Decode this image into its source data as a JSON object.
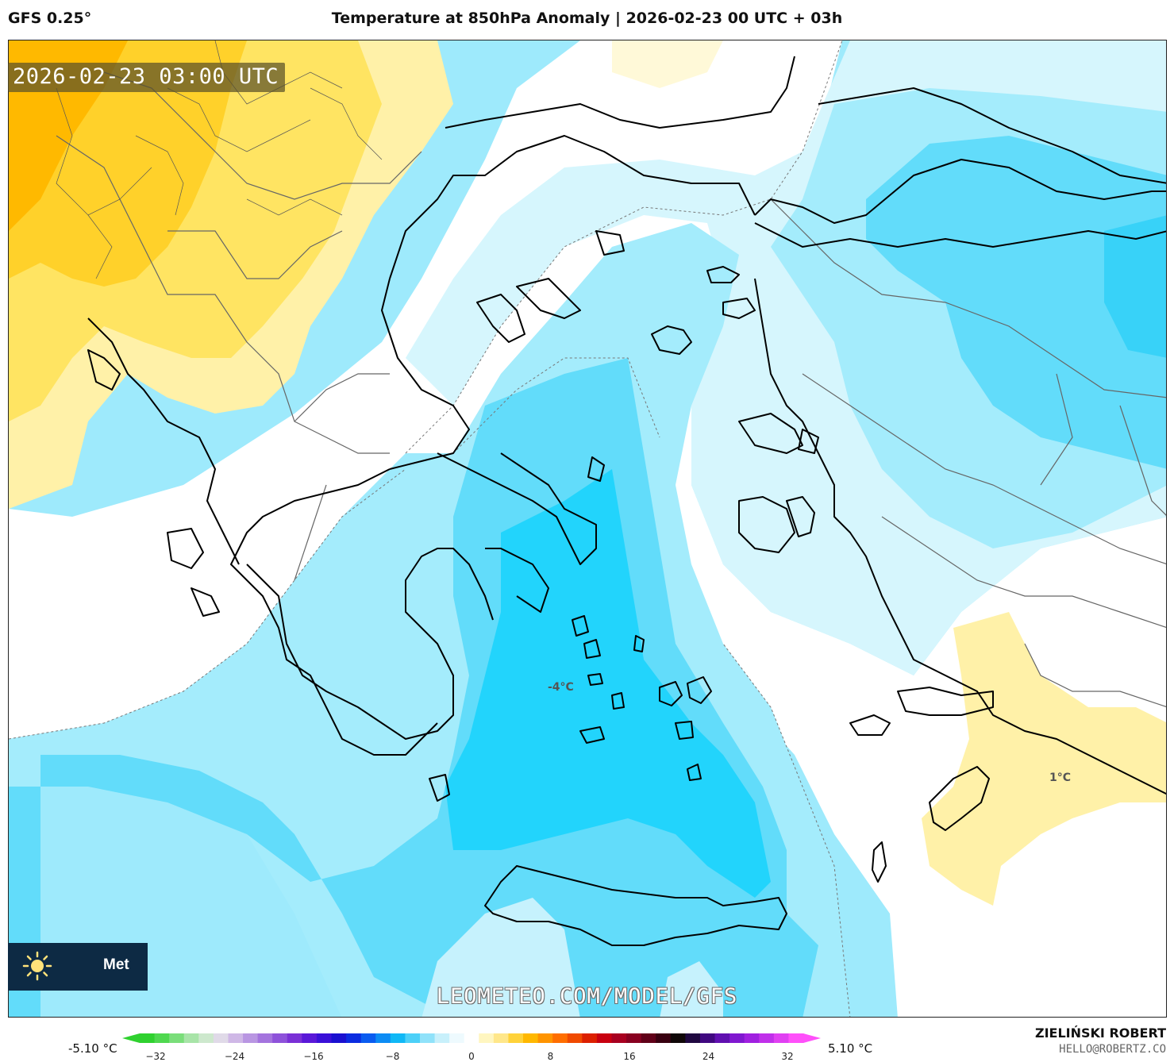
{
  "header": {
    "model": "GFS 0.25°",
    "title": "Temperature at 850hPa Anomaly | 2026-02-23 00 UTC + 03h"
  },
  "map": {
    "timestamp": "2026-02-23 03:00 UTC",
    "region": "Greece / Aegean Sea",
    "value_labels": {
      "minimum": "-4°C",
      "maximum": "1°C"
    },
    "watermark": "LEOMETEO.COM/MODEL/GFS",
    "logo_text": "Met"
  },
  "legend": {
    "min_label": "-5.10 °C",
    "max_label": "5.10 °C",
    "ticks": [
      "−32",
      "−24",
      "−16",
      "−8",
      "0",
      "8",
      "16",
      "24",
      "32"
    ],
    "colors": [
      "#2fd12f",
      "#4fd84f",
      "#7ade7a",
      "#a8e4a8",
      "#cde8cd",
      "#e0dae8",
      "#cfb8e6",
      "#b996e2",
      "#a474de",
      "#8e52da",
      "#7a30d6",
      "#5a18d8",
      "#3a10d8",
      "#1a10d0",
      "#0b2ce0",
      "#0a5cf0",
      "#0c8cf4",
      "#10b8f6",
      "#4cd0f8",
      "#90e2fa",
      "#c8f0fb",
      "#eefafe",
      "#ffffff",
      "#fff6c0",
      "#ffe78a",
      "#ffd23a",
      "#ffb800",
      "#ff9400",
      "#ff6e00",
      "#f04a00",
      "#dc2000",
      "#c80010",
      "#a80020",
      "#880020",
      "#600018",
      "#380010",
      "#100808",
      "#200840",
      "#400880",
      "#6010b0",
      "#8018d0",
      "#a020e0",
      "#c030ea",
      "#e040f2",
      "#ff50fa"
    ],
    "author": "ZIELIŃSKI ROBERT",
    "email": "HELLO@ROBERTZ.CO"
  }
}
